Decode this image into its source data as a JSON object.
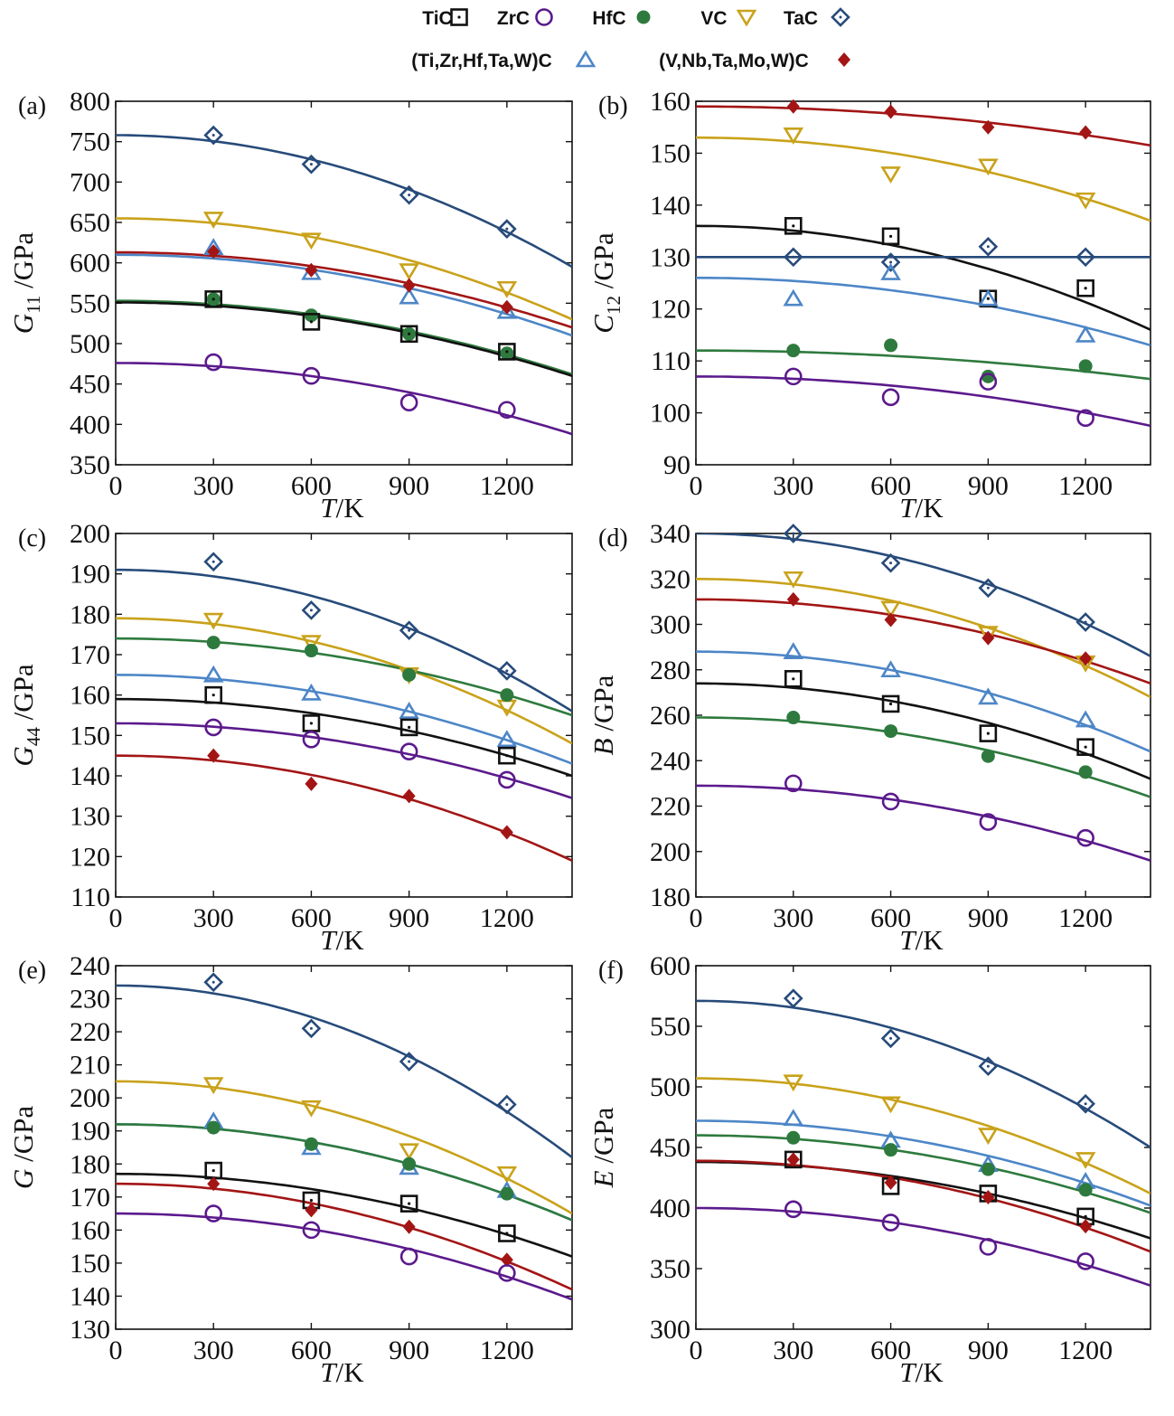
{
  "legend": {
    "row1": [
      {
        "name": "TiC",
        "marker": "square-dot",
        "color": "#111111"
      },
      {
        "name": "ZrC",
        "marker": "circle",
        "color": "#5b1a8c"
      },
      {
        "name": "HfC",
        "marker": "filled-circle",
        "color": "#2e7a3e"
      },
      {
        "name": "VC",
        "marker": "triangle-down",
        "color": "#c9a21a"
      },
      {
        "name": "TaC",
        "marker": "diamond-dot",
        "color": "#274b7a"
      }
    ],
    "row2": [
      {
        "name": "(Ti,Zr,Hf,Ta,W)C",
        "marker": "triangle-up",
        "color": "#4d86c7"
      },
      {
        "name": "(V,Nb,Ta,Mo,W)C",
        "marker": "filled-diamond",
        "color": "#a31515"
      }
    ]
  },
  "colors": {
    "TiC": "#111111",
    "ZrC": "#5b1a8c",
    "HfC": "#2e7a3e",
    "VC": "#c9a21a",
    "TaC": "#274b7a",
    "TiZrHfTaWC": "#4d86c7",
    "VNbTaMoWC": "#a31515"
  },
  "chart_data": [
    {
      "panel": "(a)",
      "type": "scatter+line",
      "ylabel_main": "G",
      "ylabel_sub": "11",
      "ylabel_unit": "/GPa",
      "xlabel_main": "T",
      "xlabel_unit": "/K",
      "xlim": [
        0,
        1400
      ],
      "ylim": [
        350,
        800
      ],
      "xticks": [
        0,
        300,
        600,
        900,
        1200
      ],
      "yticks": [
        350,
        400,
        450,
        500,
        550,
        600,
        650,
        700,
        750,
        800
      ],
      "x": [
        300,
        600,
        900,
        1200
      ],
      "series": [
        {
          "key": "TaC",
          "marker": "diamond-dot",
          "points": [
            758,
            722,
            684,
            642
          ],
          "fit": [
            758,
            595
          ]
        },
        {
          "key": "VC",
          "marker": "triangle-down",
          "points": [
            654,
            628,
            590,
            568
          ],
          "fit": [
            655,
            530
          ]
        },
        {
          "key": "TiZrHfTaWC",
          "marker": "triangle-up",
          "points": [
            619,
            588,
            558,
            540
          ],
          "fit": [
            610,
            510
          ]
        },
        {
          "key": "VNbTaMoWC",
          "marker": "filled-diamond",
          "points": [
            614,
            591,
            572,
            545
          ],
          "fit": [
            613,
            520
          ]
        },
        {
          "key": "HfC",
          "marker": "filled-circle",
          "points": [
            555,
            535,
            512,
            488
          ],
          "fit": [
            553,
            462
          ]
        },
        {
          "key": "TiC",
          "marker": "square-dot",
          "points": [
            555,
            527,
            512,
            490
          ],
          "fit": [
            551,
            460
          ]
        },
        {
          "key": "ZrC",
          "marker": "circle",
          "points": [
            477,
            460,
            427,
            418
          ],
          "fit": [
            476,
            388
          ]
        }
      ]
    },
    {
      "panel": "(b)",
      "type": "scatter+line",
      "ylabel_main": "C",
      "ylabel_sub": "12",
      "ylabel_unit": "/GPa",
      "xlabel_main": "T",
      "xlabel_unit": "/K",
      "xlim": [
        0,
        1400
      ],
      "ylim": [
        90,
        160
      ],
      "xticks": [
        0,
        300,
        600,
        900,
        1200
      ],
      "yticks": [
        90,
        100,
        110,
        120,
        130,
        140,
        150,
        160
      ],
      "x": [
        300,
        600,
        900,
        1200
      ],
      "series": [
        {
          "key": "VNbTaMoWC",
          "marker": "filled-diamond",
          "points": [
            159,
            158,
            155,
            154
          ],
          "fit": [
            159,
            151.5
          ]
        },
        {
          "key": "VC",
          "marker": "triangle-down",
          "points": [
            153.5,
            146,
            147.5,
            141
          ],
          "fit": [
            153,
            137
          ]
        },
        {
          "key": "TiC",
          "marker": "square-dot",
          "points": [
            136,
            134,
            122,
            124
          ],
          "fit": [
            136,
            116
          ]
        },
        {
          "key": "TaC",
          "marker": "diamond-dot",
          "points": [
            130,
            129,
            132,
            130
          ],
          "fit": [
            130,
            130
          ]
        },
        {
          "key": "TiZrHfTaWC",
          "marker": "triangle-up",
          "points": [
            122,
            127,
            122,
            115
          ],
          "fit": [
            126,
            113
          ]
        },
        {
          "key": "HfC",
          "marker": "filled-circle",
          "points": [
            112,
            113,
            107,
            109
          ],
          "fit": [
            112,
            106.5
          ]
        },
        {
          "key": "ZrC",
          "marker": "circle",
          "points": [
            107,
            103,
            106,
            99
          ],
          "fit": [
            107,
            97.5
          ]
        }
      ]
    },
    {
      "panel": "(c)",
      "type": "scatter+line",
      "ylabel_main": "G",
      "ylabel_sub": "44",
      "ylabel_unit": "/GPa",
      "xlabel_main": "T",
      "xlabel_unit": "/K",
      "xlim": [
        0,
        1400
      ],
      "ylim": [
        110,
        200
      ],
      "xticks": [
        0,
        300,
        600,
        900,
        1200
      ],
      "yticks": [
        110,
        120,
        130,
        140,
        150,
        160,
        170,
        180,
        190,
        200
      ],
      "x": [
        300,
        600,
        900,
        1200
      ],
      "series": [
        {
          "key": "TaC",
          "marker": "diamond-dot",
          "points": [
            193,
            181,
            176,
            166
          ],
          "fit": [
            191,
            156
          ]
        },
        {
          "key": "VC",
          "marker": "triangle-down",
          "points": [
            178.5,
            173,
            165,
            157
          ],
          "fit": [
            179,
            148
          ]
        },
        {
          "key": "HfC",
          "marker": "filled-circle",
          "points": [
            173,
            171,
            165,
            160
          ],
          "fit": [
            174,
            155
          ]
        },
        {
          "key": "TiZrHfTaWC",
          "marker": "triangle-up",
          "points": [
            165,
            160.5,
            156,
            149
          ],
          "fit": [
            165,
            143
          ]
        },
        {
          "key": "TiC",
          "marker": "square-dot",
          "points": [
            160,
            153,
            152,
            145
          ],
          "fit": [
            159,
            140
          ]
        },
        {
          "key": "ZrC",
          "marker": "circle",
          "points": [
            152,
            149,
            146,
            139
          ],
          "fit": [
            153,
            134.5
          ]
        },
        {
          "key": "VNbTaMoWC",
          "marker": "filled-diamond",
          "points": [
            145,
            138,
            135,
            126
          ],
          "fit": [
            145,
            119
          ]
        }
      ]
    },
    {
      "panel": "(d)",
      "type": "scatter+line",
      "ylabel_main": "B",
      "ylabel_sub": "",
      "ylabel_unit": "/GPa",
      "xlabel_main": "T",
      "xlabel_unit": "/K",
      "xlim": [
        0,
        1400
      ],
      "ylim": [
        180,
        340
      ],
      "xticks": [
        0,
        300,
        600,
        900,
        1200
      ],
      "yticks": [
        180,
        200,
        220,
        240,
        260,
        280,
        300,
        320,
        340
      ],
      "x": [
        300,
        600,
        900,
        1200
      ],
      "series": [
        {
          "key": "TaC",
          "marker": "diamond-dot",
          "points": [
            340,
            327,
            316,
            301
          ],
          "fit": [
            340,
            286
          ]
        },
        {
          "key": "VC",
          "marker": "triangle-down",
          "points": [
            320,
            307,
            296,
            283
          ],
          "fit": [
            320,
            268
          ]
        },
        {
          "key": "VNbTaMoWC",
          "marker": "filled-diamond",
          "points": [
            311,
            302,
            294,
            285
          ],
          "fit": [
            311,
            274
          ]
        },
        {
          "key": "TiZrHfTaWC",
          "marker": "triangle-up",
          "points": [
            288,
            280,
            268,
            258
          ],
          "fit": [
            288,
            244
          ]
        },
        {
          "key": "TiC",
          "marker": "square-dot",
          "points": [
            276,
            265,
            252,
            246
          ],
          "fit": [
            274,
            232
          ]
        },
        {
          "key": "HfC",
          "marker": "filled-circle",
          "points": [
            259,
            253,
            242,
            235
          ],
          "fit": [
            259,
            224
          ]
        },
        {
          "key": "ZrC",
          "marker": "circle",
          "points": [
            230,
            222,
            213,
            206
          ],
          "fit": [
            229,
            196
          ]
        }
      ]
    },
    {
      "panel": "(e)",
      "type": "scatter+line",
      "ylabel_main": "G",
      "ylabel_sub": "",
      "ylabel_unit": "/GPa",
      "xlabel_main": "T",
      "xlabel_unit": "/K",
      "xlim": [
        0,
        1400
      ],
      "ylim": [
        130,
        240
      ],
      "xticks": [
        0,
        300,
        600,
        900,
        1200
      ],
      "yticks": [
        130,
        140,
        150,
        160,
        170,
        180,
        190,
        200,
        210,
        220,
        230,
        240
      ],
      "x": [
        300,
        600,
        900,
        1200
      ],
      "series": [
        {
          "key": "TaC",
          "marker": "diamond-dot",
          "points": [
            235,
            221,
            211,
            198
          ],
          "fit": [
            234,
            182
          ]
        },
        {
          "key": "VC",
          "marker": "triangle-down",
          "points": [
            204,
            197,
            184,
            177
          ],
          "fit": [
            205,
            165
          ]
        },
        {
          "key": "TiZrHfTaWC",
          "marker": "triangle-up",
          "points": [
            193,
            185,
            179,
            172
          ],
          "fit": [
            192,
            163
          ]
        },
        {
          "key": "HfC",
          "marker": "filled-circle",
          "points": [
            191,
            186,
            180,
            171
          ],
          "fit": [
            192,
            163
          ]
        },
        {
          "key": "TiC",
          "marker": "square-dot",
          "points": [
            178,
            169,
            168,
            159
          ],
          "fit": [
            177,
            152
          ]
        },
        {
          "key": "VNbTaMoWC",
          "marker": "filled-diamond",
          "points": [
            174,
            166,
            161,
            151
          ],
          "fit": [
            174,
            142
          ]
        },
        {
          "key": "ZrC",
          "marker": "circle",
          "points": [
            165,
            160,
            152,
            147
          ],
          "fit": [
            165,
            139
          ]
        }
      ]
    },
    {
      "panel": "(f)",
      "type": "scatter+line",
      "ylabel_main": "E",
      "ylabel_sub": "",
      "ylabel_unit": "/GPa",
      "xlabel_main": "T",
      "xlabel_unit": "/K",
      "xlim": [
        0,
        1400
      ],
      "ylim": [
        300,
        600
      ],
      "xticks": [
        0,
        300,
        600,
        900,
        1200
      ],
      "yticks": [
        300,
        350,
        400,
        450,
        500,
        550,
        600
      ],
      "x": [
        300,
        600,
        900,
        1200
      ],
      "series": [
        {
          "key": "TaC",
          "marker": "diamond-dot",
          "points": [
            573,
            540,
            517,
            486
          ],
          "fit": [
            571,
            450
          ]
        },
        {
          "key": "VC",
          "marker": "triangle-down",
          "points": [
            504,
            486,
            460,
            440
          ],
          "fit": [
            507,
            412
          ]
        },
        {
          "key": "TiZrHfTaWC",
          "marker": "triangle-up",
          "points": [
            474,
            456,
            436,
            422
          ],
          "fit": [
            472,
            402
          ]
        },
        {
          "key": "HfC",
          "marker": "filled-circle",
          "points": [
            458,
            448,
            432,
            415
          ],
          "fit": [
            460,
            396
          ]
        },
        {
          "key": "TiC",
          "marker": "square-dot",
          "points": [
            440,
            418,
            412,
            393
          ],
          "fit": [
            438,
            375
          ]
        },
        {
          "key": "VNbTaMoWC",
          "marker": "filled-diamond",
          "points": [
            440,
            421,
            409,
            385
          ],
          "fit": [
            439,
            364
          ]
        },
        {
          "key": "ZrC",
          "marker": "circle",
          "points": [
            399,
            388,
            368,
            356
          ],
          "fit": [
            400,
            336
          ]
        }
      ]
    }
  ]
}
